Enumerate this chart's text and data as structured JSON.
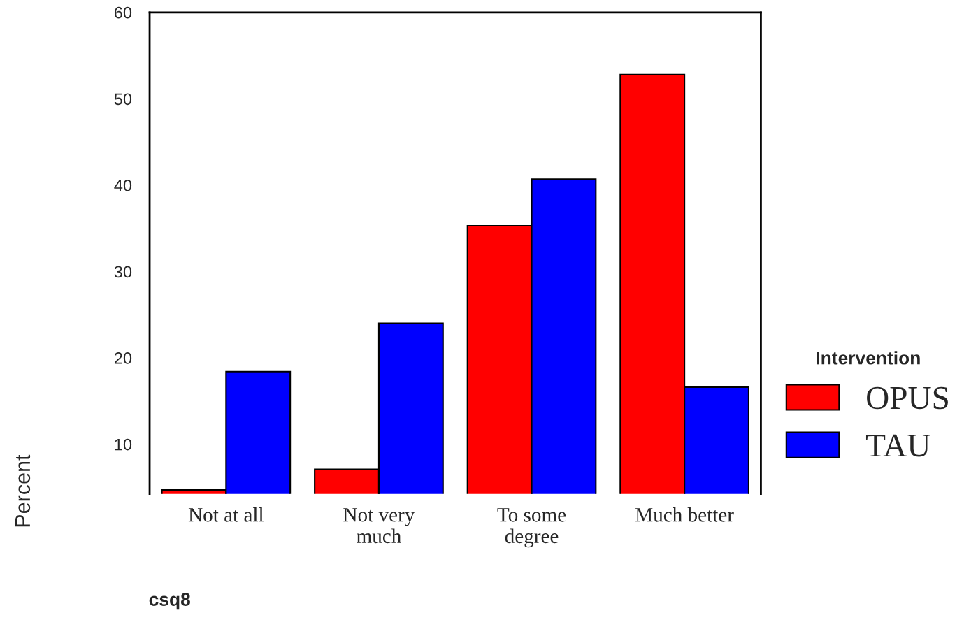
{
  "chart_data": {
    "type": "bar",
    "xlabel": "csq8",
    "ylabel": "Percent",
    "legend_title": "Intervention",
    "categories": [
      "Not at all",
      "Not very\nmuch",
      "To some\ndegree",
      "Much better"
    ],
    "series": [
      {
        "name": "OPUS",
        "color": "#ff0000",
        "values": [
          4.7,
          7.1,
          35.3,
          52.8
        ]
      },
      {
        "name": "TAU",
        "color": "#0000ff",
        "values": [
          18.4,
          24.0,
          40.7,
          16.6
        ]
      }
    ],
    "ylim": [
      4.25,
      60
    ],
    "yticks": [
      10,
      20,
      30,
      40,
      50,
      60
    ],
    "grid": false,
    "legend": "right"
  }
}
